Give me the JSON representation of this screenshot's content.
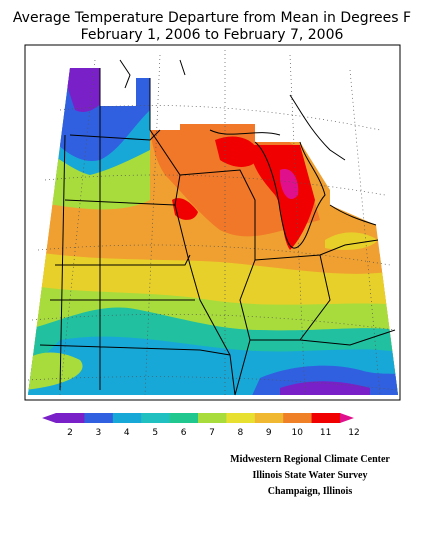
{
  "header": {
    "title_line_1": "Average Temperature Departure from Mean in Degrees F",
    "title_line_2": "February 1, 2006 to February 7, 2006"
  },
  "legend": {
    "labels": [
      "2",
      "3",
      "4",
      "5",
      "6",
      "7",
      "8",
      "9",
      "10",
      "11",
      "12"
    ]
  },
  "credits": {
    "line_1": "Midwestern Regional Climate Center",
    "line_2": "Illinois State Water Survey",
    "line_3": "Champaign, Illinois"
  }
}
